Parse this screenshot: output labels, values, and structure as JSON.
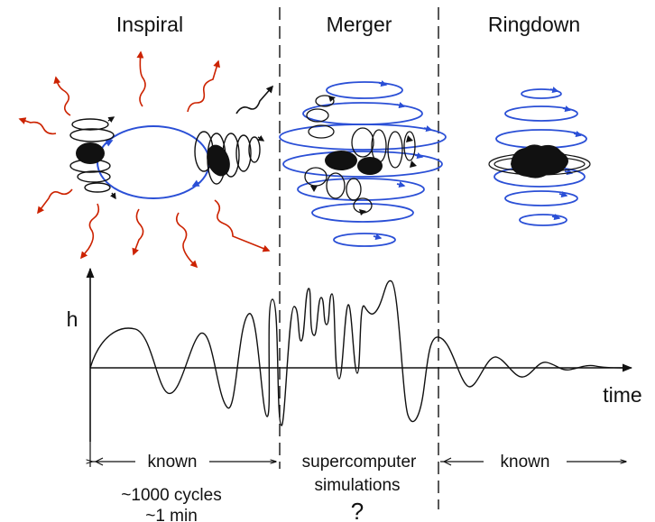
{
  "phases": {
    "inspiral": "Inspiral",
    "merger": "Merger",
    "ringdown": "Ringdown"
  },
  "axes": {
    "y_label": "h",
    "x_label": "time"
  },
  "segments": {
    "inspiral_label": "known",
    "merger_label_line1": "supercomputer",
    "merger_label_line2": "simulations",
    "merger_question": "?",
    "ringdown_label": "known",
    "cycles_line1": "~1000 cycles",
    "cycles_line2": "~1 min"
  },
  "colors": {
    "radiation_arrows": "#cc2200",
    "orbits": "#2a4fd6",
    "ink": "#111111"
  },
  "icons": {
    "black_hole": "black-hole-blob",
    "gravitational_wave_arrow": "wavy-arrow"
  }
}
